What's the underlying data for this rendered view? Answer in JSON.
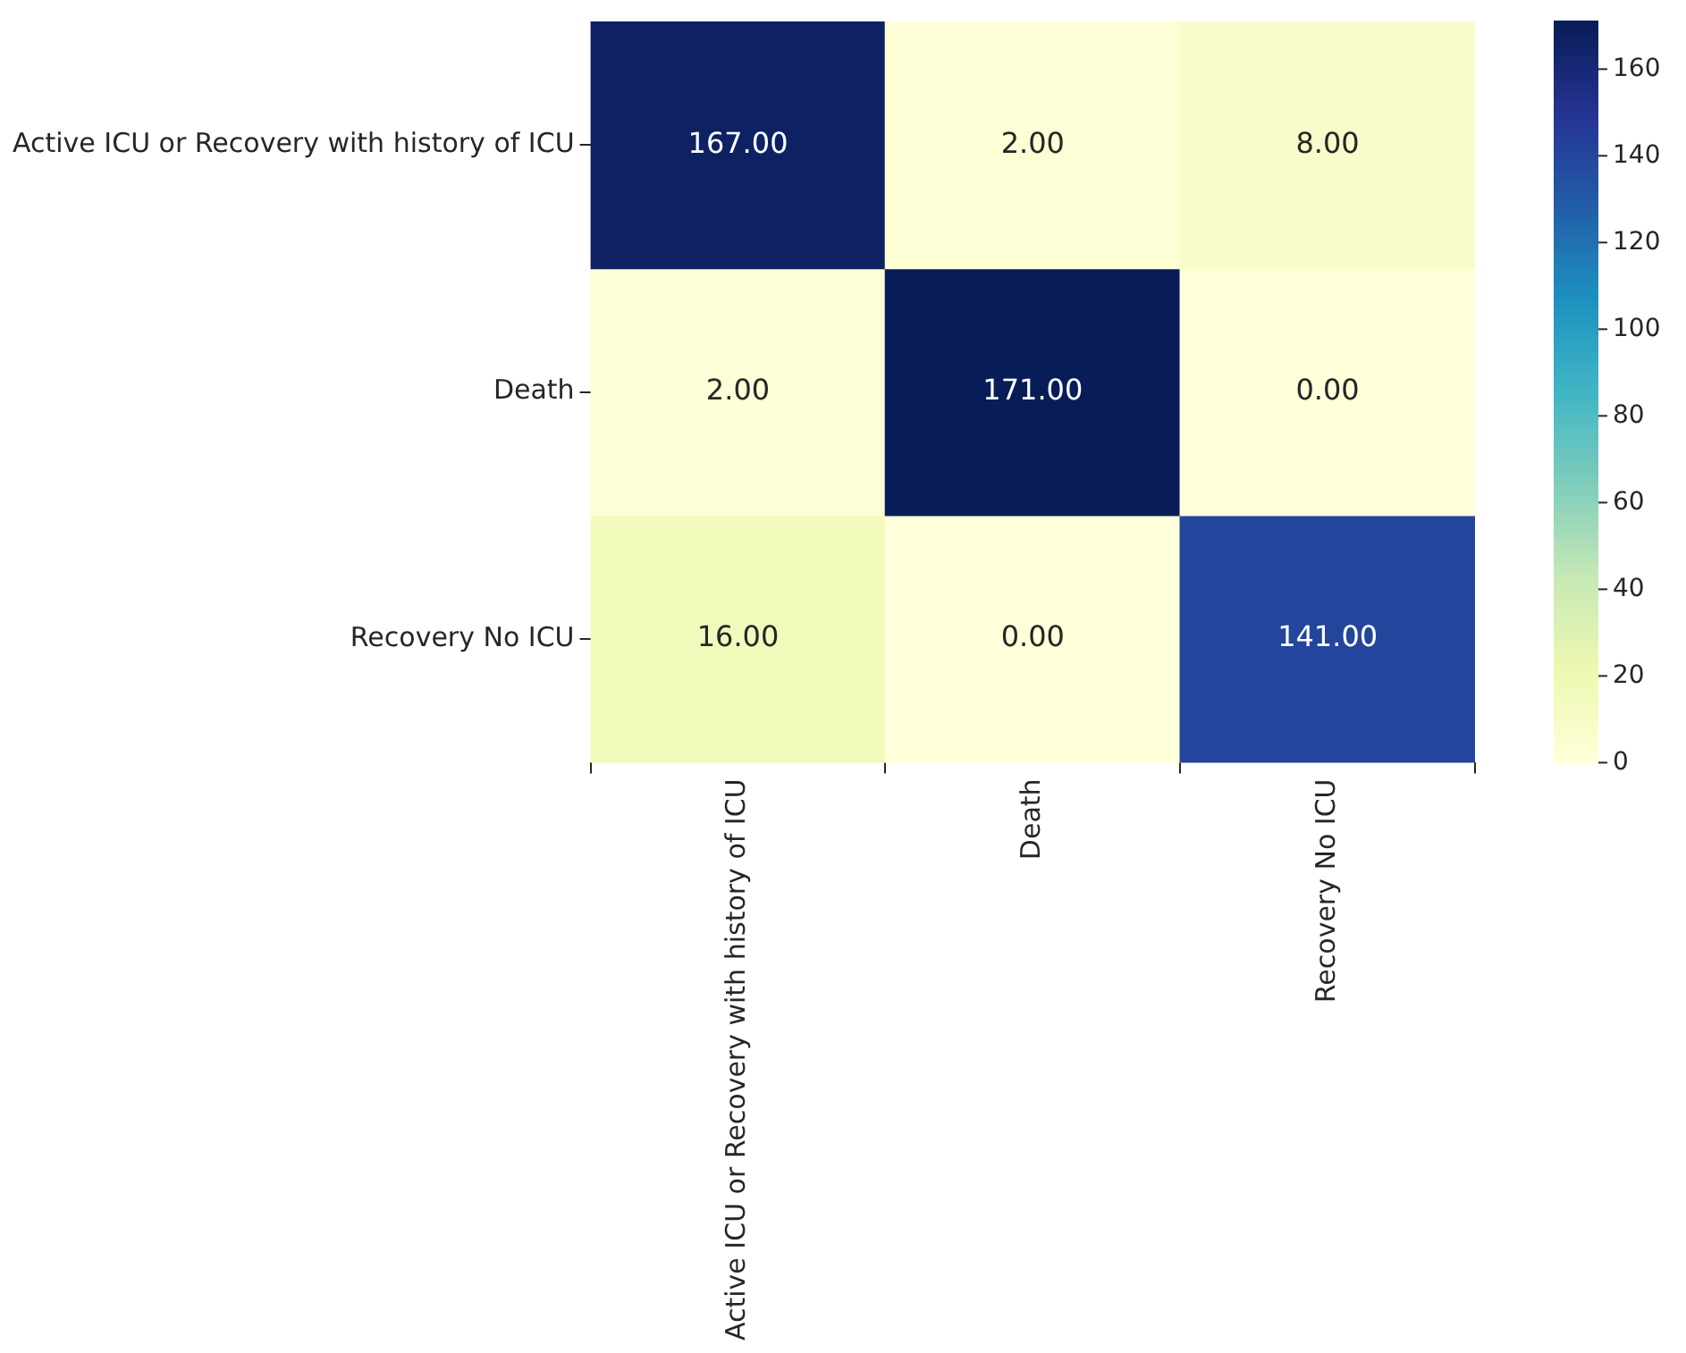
{
  "chart_data": {
    "type": "heatmap",
    "categories": [
      "Active ICU or Recovery with history of ICU",
      "Death",
      "Recovery No ICU"
    ],
    "y_categories": [
      "Active ICU or Recovery with history of ICU",
      "Death",
      "Recovery No ICU"
    ],
    "cells": [
      [
        167,
        2,
        8
      ],
      [
        2,
        171,
        0
      ],
      [
        16,
        0,
        141
      ]
    ],
    "cell_labels": [
      [
        "167.00",
        "2.00",
        "8.00"
      ],
      [
        "2.00",
        "171.00",
        "0.00"
      ],
      [
        "16.00",
        "0.00",
        "141.00"
      ]
    ],
    "clim": [
      0,
      171
    ],
    "cticks": [
      0,
      20,
      40,
      60,
      80,
      100,
      120,
      140,
      160
    ]
  }
}
